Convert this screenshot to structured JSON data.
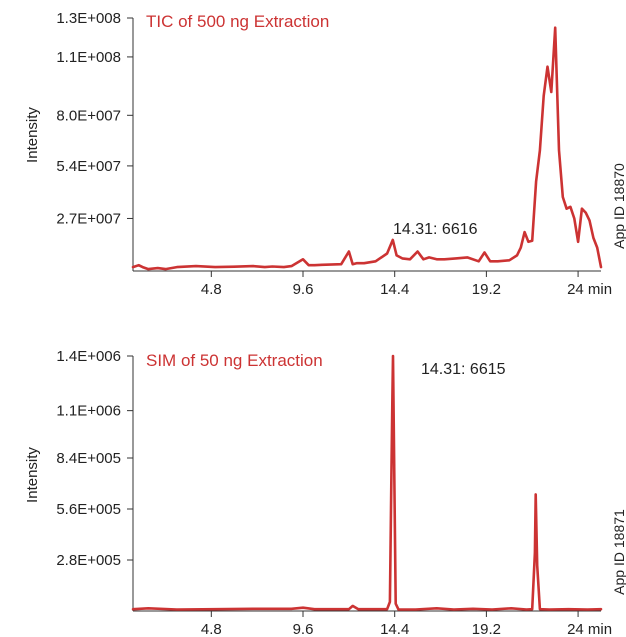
{
  "chart_data": [
    {
      "type": "line",
      "title": "TIC of 500 ng Extraction",
      "ylabel": "Intensity",
      "xlabel": "",
      "x_unit": "min",
      "xlim": [
        0.7,
        25.2
      ],
      "ylim": [
        0,
        130000000
      ],
      "x_ticks": [
        4.8,
        9.6,
        14.4,
        19.2,
        24
      ],
      "x_tick_labels": [
        "4.8",
        "9.6",
        "14.4",
        "19.2",
        "24 min"
      ],
      "y_ticks": [
        27000000,
        54000000,
        80000000,
        110000000,
        130000000
      ],
      "y_tick_labels": [
        "2.7E+007",
        "5.4E+007",
        "8.0E+007",
        "1.1E+008",
        "1.3E+008"
      ],
      "annotations": [
        {
          "text": "14.31: 6616",
          "x": 14.31,
          "y": 14000000
        }
      ],
      "side_label": "App ID 18870",
      "color": "#cc3333",
      "series": [
        {
          "x": [
            0.7,
            1.0,
            1.2,
            1.5,
            2.0,
            2.4,
            3.0,
            4.0,
            5.0,
            6.0,
            7.0,
            7.6,
            8.0,
            8.6,
            9.0,
            9.6,
            9.9,
            10.2,
            10.6,
            11.0,
            11.6,
            12.0,
            12.2,
            12.4,
            12.8,
            13.4,
            14.0,
            14.3,
            14.5,
            14.8,
            15.2,
            15.6,
            15.9,
            16.2,
            16.6,
            17.0,
            17.6,
            18.2,
            18.8,
            19.1,
            19.4,
            19.8,
            20.4,
            20.8,
            21.0,
            21.2,
            21.4,
            21.6,
            21.8,
            22.0,
            22.2,
            22.4,
            22.6,
            22.8,
            23.0,
            23.2,
            23.4,
            23.6,
            23.8,
            24.0,
            24.2,
            24.4,
            24.6,
            24.8,
            25.0,
            25.2
          ],
          "y": [
            2000000,
            3000000,
            2000000,
            1000000,
            1500000,
            1000000,
            2000000,
            2500000,
            2000000,
            2200000,
            2500000,
            2000000,
            2300000,
            2000000,
            2500000,
            6000000,
            3000000,
            3000000,
            3200000,
            3300000,
            3500000,
            10000000,
            3500000,
            4000000,
            4000000,
            5000000,
            9000000,
            16000000,
            8000000,
            6500000,
            6000000,
            10000000,
            6000000,
            7000000,
            6000000,
            6000000,
            6500000,
            7000000,
            5000000,
            9500000,
            5000000,
            5000000,
            5500000,
            8000000,
            12000000,
            20000000,
            15000000,
            15500000,
            46000000,
            62000000,
            90000000,
            105000000,
            92000000,
            125000000,
            62000000,
            38000000,
            32000000,
            33000000,
            27000000,
            15000000,
            32000000,
            30000000,
            26000000,
            17000000,
            12000000,
            2000000
          ]
        }
      ]
    },
    {
      "type": "line",
      "title": "SIM of 50 ng Extraction",
      "ylabel": "Intensity",
      "xlabel": "",
      "x_unit": "min",
      "xlim": [
        0.7,
        25.2
      ],
      "ylim": [
        0,
        1400000
      ],
      "x_ticks": [
        4.8,
        9.6,
        14.4,
        19.2,
        24
      ],
      "x_tick_labels": [
        "4.8",
        "9.6",
        "14.4",
        "19.2",
        "24 min"
      ],
      "y_ticks": [
        280000,
        560000,
        840000,
        1100000,
        1400000
      ],
      "y_tick_labels": [
        "2.8E+005",
        "5.6E+005",
        "8.4E+005",
        "1.1E+006",
        "1.4E+006"
      ],
      "annotations": [
        {
          "text": "14.31: 6615",
          "x": 14.31,
          "y": 1300000
        }
      ],
      "side_label": "App ID 18871",
      "color": "#cc3333",
      "series": [
        {
          "x": [
            0.7,
            1.5,
            3.0,
            5.0,
            7.0,
            9.0,
            9.6,
            10.2,
            11.0,
            12.0,
            12.2,
            12.5,
            13.5,
            14.0,
            14.15,
            14.22,
            14.28,
            14.31,
            14.36,
            14.45,
            14.6,
            15.5,
            16.6,
            17.5,
            18.5,
            19.5,
            20.5,
            21.3,
            21.6,
            21.74,
            21.78,
            21.86,
            22.0,
            22.5,
            23.5,
            24.5,
            25.2
          ],
          "y": [
            10000,
            15000,
            8000,
            10000,
            12000,
            12000,
            18000,
            10000,
            10000,
            10000,
            28000,
            10000,
            10000,
            10000,
            50000,
            700000,
            1180000,
            1400000,
            950000,
            40000,
            8000,
            8000,
            15000,
            8000,
            12000,
            8000,
            15000,
            8000,
            10000,
            320000,
            640000,
            250000,
            10000,
            8000,
            10000,
            8000,
            10000
          ]
        }
      ]
    }
  ]
}
